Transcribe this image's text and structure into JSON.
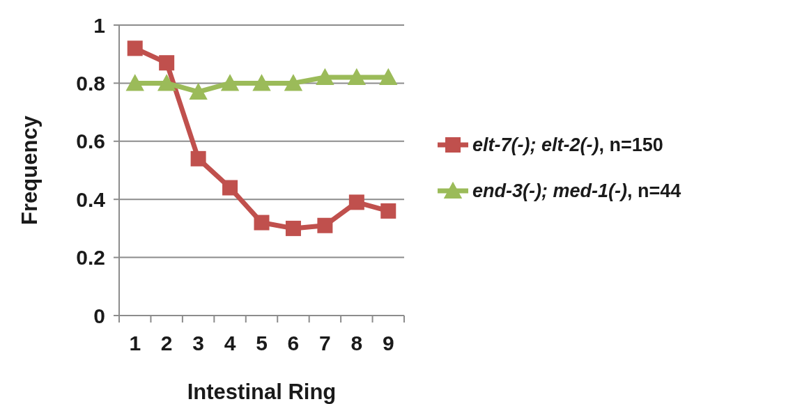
{
  "chart_data": {
    "type": "line",
    "xlabel": "Intestinal Ring",
    "ylabel": "Frequency",
    "categories": [
      "1",
      "2",
      "3",
      "4",
      "5",
      "6",
      "7",
      "8",
      "9"
    ],
    "series": [
      {
        "name": "elt-7(-); elt-2(-), n=150",
        "color": "#c0504d",
        "marker": "square",
        "values": [
          0.92,
          0.87,
          0.54,
          0.44,
          0.32,
          0.3,
          0.31,
          0.39,
          0.36
        ]
      },
      {
        "name": "end-3(-); med-1(-), n=44",
        "color": "#9bbb59",
        "marker": "triangle",
        "values": [
          0.8,
          0.8,
          0.77,
          0.8,
          0.8,
          0.8,
          0.82,
          0.82,
          0.82
        ]
      }
    ],
    "ylim": [
      0,
      1
    ],
    "yticks": [
      0,
      0.2,
      0.4,
      0.6,
      0.8,
      1
    ],
    "grid": "y",
    "legend": "right"
  }
}
